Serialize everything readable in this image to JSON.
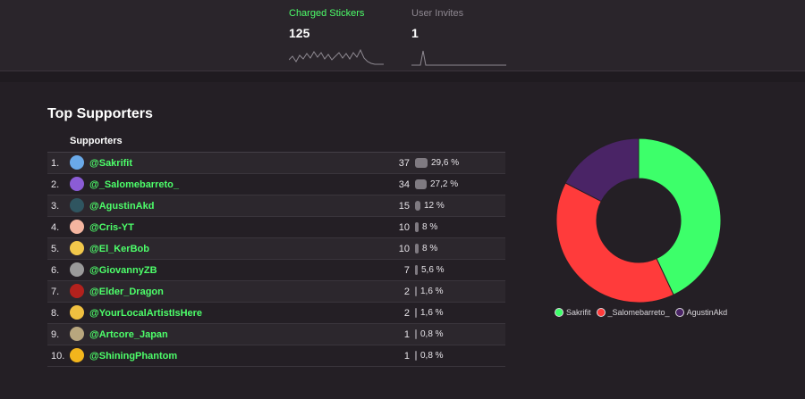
{
  "stats": [
    {
      "label": "Charged Stickers",
      "value": "125",
      "label_color": "#4dff6a"
    },
    {
      "label": "User Invites",
      "value": "1",
      "label_color": "#8d8790"
    }
  ],
  "section": {
    "title": "Top Supporters",
    "column_header": "Supporters"
  },
  "supporters": [
    {
      "rank": "1.",
      "name": "@Sakrifit",
      "count": "37",
      "share": 0.296,
      "pct": "29,6 %",
      "avatar_color": "#6aa9e8"
    },
    {
      "rank": "2.",
      "name": "@_Salomebarreto_",
      "count": "34",
      "share": 0.272,
      "pct": "27,2 %",
      "avatar_color": "#8b5cd6"
    },
    {
      "rank": "3.",
      "name": "@AgustinAkd",
      "count": "15",
      "share": 0.12,
      "pct": "12 %",
      "avatar_color": "#2f5560"
    },
    {
      "rank": "4.",
      "name": "@Cris-YT",
      "count": "10",
      "share": 0.08,
      "pct": "8 %",
      "avatar_color": "#f4b5a0"
    },
    {
      "rank": "5.",
      "name": "@El_KerBob",
      "count": "10",
      "share": 0.08,
      "pct": "8 %",
      "avatar_color": "#f2c84b"
    },
    {
      "rank": "6.",
      "name": "@GiovannyZB",
      "count": "7",
      "share": 0.056,
      "pct": "5,6 %",
      "avatar_color": "#9a9a9a"
    },
    {
      "rank": "7.",
      "name": "@Elder_Dragon",
      "count": "2",
      "share": 0.016,
      "pct": "1,6 %",
      "avatar_color": "#b3211d"
    },
    {
      "rank": "8.",
      "name": "@YourLocalArtistIsHere",
      "count": "2",
      "share": 0.016,
      "pct": "1,6 %",
      "avatar_color": "#f0c040"
    },
    {
      "rank": "9.",
      "name": "@Artcore_Japan",
      "count": "1",
      "share": 0.008,
      "pct": "0,8 %",
      "avatar_color": "#b8a67e"
    },
    {
      "rank": "10.",
      "name": "@ShiningPhantom",
      "count": "1",
      "share": 0.008,
      "pct": "0,8 %",
      "avatar_color": "#f2b51c"
    }
  ],
  "chart_data": {
    "type": "pie",
    "labels": [
      "Sakrifit",
      "_Salomebarreto_",
      "AgustinAkd"
    ],
    "values": [
      37,
      34,
      15
    ],
    "colors": [
      "#3dff6a",
      "#ff3b3b",
      "#4a2466"
    ],
    "donut": true,
    "legend_position": "bottom"
  }
}
